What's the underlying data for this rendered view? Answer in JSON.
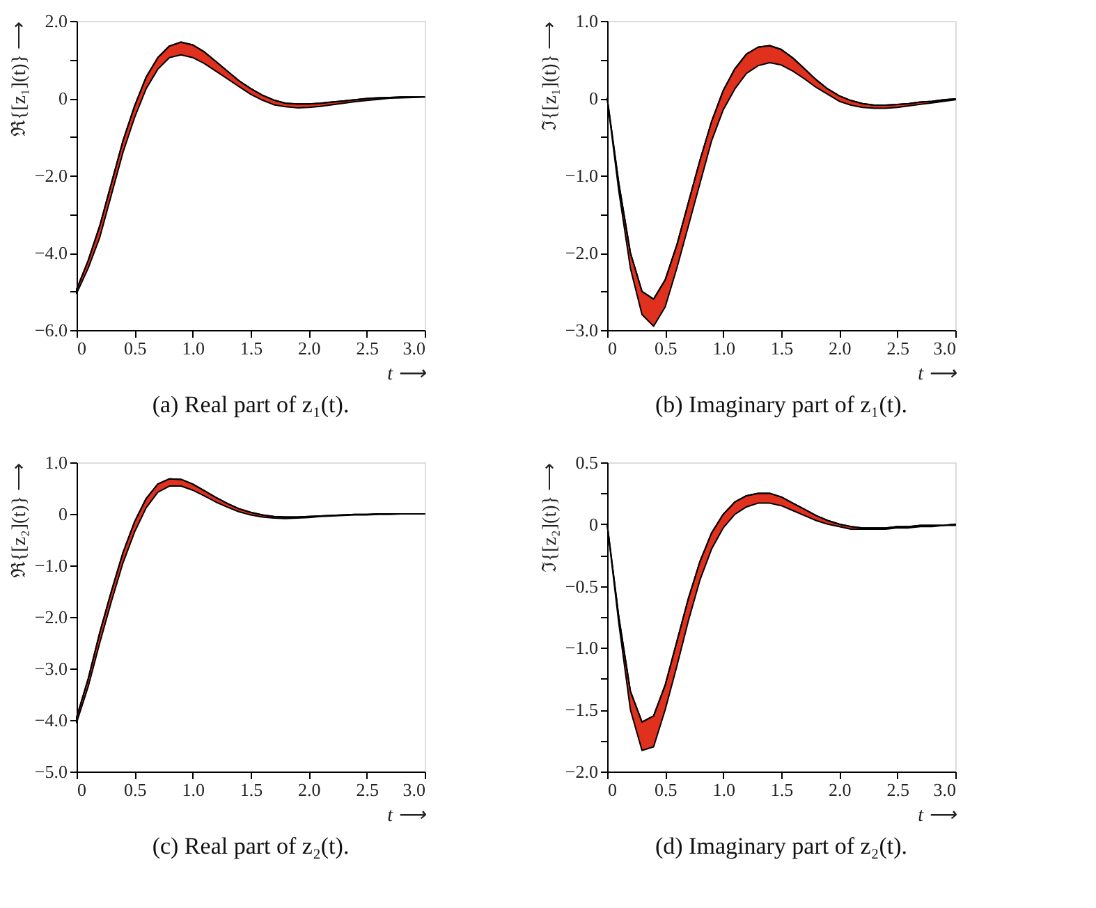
{
  "chart_data": [
    {
      "type": "line",
      "title": "(a) Real part of z₁(t).",
      "xlabel": "t ⟶",
      "ylabel": "ℜ{[z₁](t)} ⟶",
      "x": [
        0,
        0.1,
        0.2,
        0.3,
        0.4,
        0.5,
        0.6,
        0.7,
        0.8,
        0.9,
        1.0,
        1.1,
        1.2,
        1.3,
        1.4,
        1.5,
        1.6,
        1.7,
        1.8,
        1.9,
        2.0,
        2.1,
        2.2,
        2.3,
        2.4,
        2.5,
        2.6,
        2.7,
        2.8,
        2.9,
        3.0
      ],
      "xlim": [
        0,
        3
      ],
      "xticks": [
        0,
        0.5,
        {
          "value": 1,
          "label": "1.0"
        },
        1.5,
        {
          "value": 2,
          "label": "2.0"
        },
        2.5,
        {
          "value": 3,
          "label": "3.0"
        }
      ],
      "ylim": [
        -6,
        2
      ],
      "yticks": [
        {
          "value": -6,
          "label": "−6.0"
        },
        {
          "value": -5,
          "label": null
        },
        {
          "value": -4,
          "label": "−4.0"
        },
        {
          "value": -3,
          "label": null
        },
        {
          "value": -2,
          "label": "−2.0"
        },
        {
          "value": -1,
          "label": null
        },
        0,
        {
          "value": 1,
          "label": null
        },
        {
          "value": 2,
          "label": "2.0"
        }
      ],
      "series": [
        {
          "color": "#000000",
          "values": [
            -4.95,
            -4.2,
            -3.3,
            -2.2,
            -1.1,
            -0.2,
            0.55,
            1.05,
            1.35,
            1.45,
            1.38,
            1.2,
            0.95,
            0.7,
            0.45,
            0.25,
            0.08,
            -0.05,
            -0.13,
            -0.15,
            -0.15,
            -0.13,
            -0.1,
            -0.07,
            -0.04,
            -0.01,
            0.01,
            0.02,
            0.03,
            0.03,
            0.03
          ],
          "lower": [
            -5.05,
            -4.4,
            -3.6,
            -2.5,
            -1.4,
            -0.5,
            0.25,
            0.75,
            1.05,
            1.12,
            1.05,
            0.9,
            0.7,
            0.5,
            0.3,
            0.1,
            -0.05,
            -0.17,
            -0.22,
            -0.25,
            -0.24,
            -0.21,
            -0.17,
            -0.13,
            -0.09,
            -0.06,
            -0.03,
            0,
            0.01,
            0.02,
            0.03
          ],
          "upper": [
            -4.95,
            -4.2,
            -3.3,
            -2.2,
            -1.1,
            -0.2,
            0.55,
            1.05,
            1.35,
            1.45,
            1.38,
            1.2,
            0.95,
            0.7,
            0.45,
            0.25,
            0.08,
            -0.05,
            -0.13,
            -0.15,
            -0.15,
            -0.13,
            -0.1,
            -0.07,
            -0.04,
            -0.01,
            0.01,
            0.02,
            0.03,
            0.03,
            0.03
          ]
        }
      ]
    },
    {
      "type": "line",
      "title": "(b) Imaginary part of z₁(t).",
      "xlabel": "t ⟶",
      "ylabel": "ℑ{[z₁](t)} ⟶",
      "x": [
        0,
        0.1,
        0.2,
        0.3,
        0.4,
        0.5,
        0.6,
        0.7,
        0.8,
        0.9,
        1.0,
        1.1,
        1.2,
        1.3,
        1.4,
        1.5,
        1.6,
        1.7,
        1.8,
        1.9,
        2.0,
        2.1,
        2.2,
        2.3,
        2.4,
        2.5,
        2.6,
        2.7,
        2.8,
        2.9,
        3.0
      ],
      "xlim": [
        0,
        3
      ],
      "xticks": [
        0,
        0.5,
        {
          "value": 1,
          "label": "1.0"
        },
        1.5,
        {
          "value": 2,
          "label": "2.0"
        },
        2.5,
        {
          "value": 3,
          "label": "3.0"
        }
      ],
      "ylim": [
        -3,
        1
      ],
      "yticks": [
        {
          "value": -3,
          "label": "−3.0"
        },
        {
          "value": -2.5,
          "label": null
        },
        {
          "value": -2,
          "label": "−2.0"
        },
        {
          "value": -1.5,
          "label": null
        },
        {
          "value": -1,
          "label": "−1.0"
        },
        {
          "value": -0.5,
          "label": null
        },
        0,
        {
          "value": 0.5,
          "label": null
        },
        {
          "value": 1,
          "label": "1.0"
        }
      ],
      "series": [
        {
          "color": "#000000",
          "values": [
            0,
            -1.1,
            -2.0,
            -2.5,
            -2.6,
            -2.35,
            -1.9,
            -1.35,
            -0.8,
            -0.3,
            0.1,
            0.38,
            0.57,
            0.66,
            0.68,
            0.63,
            0.52,
            0.38,
            0.24,
            0.12,
            0.03,
            -0.03,
            -0.07,
            -0.09,
            -0.09,
            -0.08,
            -0.07,
            -0.05,
            -0.04,
            -0.02,
            -0.01
          ],
          "lower": [
            0,
            -1.2,
            -2.2,
            -2.8,
            -2.95,
            -2.7,
            -2.2,
            -1.65,
            -1.1,
            -0.55,
            -0.15,
            0.12,
            0.32,
            0.42,
            0.46,
            0.43,
            0.35,
            0.25,
            0.14,
            0.05,
            -0.04,
            -0.09,
            -0.12,
            -0.13,
            -0.13,
            -0.12,
            -0.1,
            -0.08,
            -0.06,
            -0.04,
            -0.02
          ],
          "upper": [
            0,
            -1.1,
            -2.0,
            -2.5,
            -2.6,
            -2.35,
            -1.9,
            -1.35,
            -0.8,
            -0.3,
            0.1,
            0.38,
            0.57,
            0.66,
            0.68,
            0.63,
            0.52,
            0.38,
            0.24,
            0.12,
            0.03,
            -0.03,
            -0.07,
            -0.09,
            -0.09,
            -0.08,
            -0.07,
            -0.05,
            -0.04,
            -0.02,
            -0.01
          ]
        }
      ]
    },
    {
      "type": "line",
      "title": "(c) Real part of z₂(t).",
      "xlabel": "t ⟶",
      "ylabel": "ℜ{[z₂](t)} ⟶",
      "x": [
        0,
        0.1,
        0.2,
        0.3,
        0.4,
        0.5,
        0.6,
        0.7,
        0.8,
        0.9,
        1.0,
        1.1,
        1.2,
        1.3,
        1.4,
        1.5,
        1.6,
        1.7,
        1.8,
        1.9,
        2.0,
        2.1,
        2.2,
        2.3,
        2.4,
        2.5,
        2.6,
        2.7,
        2.8,
        2.9,
        3.0
      ],
      "xlim": [
        0,
        3
      ],
      "xticks": [
        0,
        0.5,
        {
          "value": 1,
          "label": "1.0"
        },
        1.5,
        {
          "value": 2,
          "label": "2.0"
        },
        2.5,
        {
          "value": 3,
          "label": "3.0"
        }
      ],
      "ylim": [
        -5,
        1
      ],
      "yticks": [
        {
          "value": -5,
          "label": "−5.0"
        },
        {
          "value": -4,
          "label": "−4.0"
        },
        {
          "value": -3,
          "label": "−3.0"
        },
        {
          "value": -2,
          "label": "−2.0"
        },
        {
          "value": -1,
          "label": "−1.0"
        },
        0,
        {
          "value": 1,
          "label": "1.0"
        }
      ],
      "series": [
        {
          "color": "#000000",
          "values": [
            -3.95,
            -3.2,
            -2.3,
            -1.5,
            -0.75,
            -0.15,
            0.3,
            0.58,
            0.68,
            0.67,
            0.58,
            0.45,
            0.32,
            0.2,
            0.1,
            0.03,
            -0.02,
            -0.05,
            -0.06,
            -0.06,
            -0.05,
            -0.04,
            -0.03,
            -0.02,
            -0.01,
            -0.01,
            0,
            0,
            0,
            0,
            0
          ],
          "lower": [
            -4.05,
            -3.35,
            -2.5,
            -1.7,
            -0.95,
            -0.35,
            0.12,
            0.42,
            0.54,
            0.54,
            0.46,
            0.35,
            0.23,
            0.13,
            0.04,
            -0.02,
            -0.06,
            -0.08,
            -0.09,
            -0.08,
            -0.07,
            -0.05,
            -0.04,
            -0.03,
            -0.02,
            -0.02,
            -0.01,
            -0.01,
            0,
            0,
            0
          ],
          "upper": [
            -3.95,
            -3.2,
            -2.3,
            -1.5,
            -0.75,
            -0.15,
            0.3,
            0.58,
            0.68,
            0.67,
            0.58,
            0.45,
            0.32,
            0.2,
            0.1,
            0.03,
            -0.02,
            -0.05,
            -0.06,
            -0.06,
            -0.05,
            -0.04,
            -0.03,
            -0.02,
            -0.01,
            -0.01,
            0,
            0,
            0,
            0,
            0
          ]
        }
      ]
    },
    {
      "type": "line",
      "title": "(d) Imaginary part of z₂(t).",
      "xlabel": "t ⟶",
      "ylabel": "ℑ{[z₂](t)} ⟶",
      "x": [
        0,
        0.1,
        0.2,
        0.3,
        0.4,
        0.5,
        0.6,
        0.7,
        0.8,
        0.9,
        1.0,
        1.1,
        1.2,
        1.3,
        1.4,
        1.5,
        1.6,
        1.7,
        1.8,
        1.9,
        2.0,
        2.1,
        2.2,
        2.3,
        2.4,
        2.5,
        2.6,
        2.7,
        2.8,
        2.9,
        3.0
      ],
      "xlim": [
        0,
        3
      ],
      "xticks": [
        0,
        0.5,
        {
          "value": 1,
          "label": "1.0"
        },
        1.5,
        {
          "value": 2,
          "label": "2.0"
        },
        2.5,
        {
          "value": 3,
          "label": "3.0"
        }
      ],
      "ylim": [
        -2,
        0.5
      ],
      "yticks": [
        {
          "value": -2,
          "label": "−2.0"
        },
        {
          "value": -1.75,
          "label": null
        },
        {
          "value": -1.5,
          "label": "−1.5"
        },
        {
          "value": -1.25,
          "label": null
        },
        {
          "value": -1,
          "label": "−1.0"
        },
        {
          "value": -0.75,
          "label": null
        },
        {
          "value": -0.5,
          "label": "−0.5"
        },
        {
          "value": -0.25,
          "label": null
        },
        0,
        {
          "value": 0.25,
          "label": null
        },
        0.5
      ],
      "series": [
        {
          "color": "#000000",
          "values": [
            0,
            -0.75,
            -1.35,
            -1.6,
            -1.55,
            -1.3,
            -0.95,
            -0.6,
            -0.3,
            -0.07,
            0.08,
            0.18,
            0.23,
            0.25,
            0.25,
            0.22,
            0.17,
            0.12,
            0.07,
            0.03,
            0,
            -0.02,
            -0.03,
            -0.03,
            -0.03,
            -0.02,
            -0.02,
            -0.01,
            -0.01,
            -0.01,
            0
          ],
          "lower": [
            0,
            -0.8,
            -1.5,
            -1.83,
            -1.8,
            -1.5,
            -1.15,
            -0.78,
            -0.45,
            -0.2,
            -0.03,
            0.08,
            0.14,
            0.17,
            0.17,
            0.15,
            0.11,
            0.07,
            0.03,
            0,
            -0.02,
            -0.04,
            -0.04,
            -0.04,
            -0.04,
            -0.03,
            -0.03,
            -0.02,
            -0.02,
            -0.01,
            -0.01
          ],
          "upper": [
            0,
            -0.75,
            -1.35,
            -1.6,
            -1.55,
            -1.3,
            -0.95,
            -0.6,
            -0.3,
            -0.07,
            0.08,
            0.18,
            0.23,
            0.25,
            0.25,
            0.22,
            0.17,
            0.12,
            0.07,
            0.03,
            0,
            -0.02,
            -0.03,
            -0.03,
            -0.03,
            -0.02,
            -0.02,
            -0.01,
            -0.01,
            -0.01,
            0
          ]
        }
      ]
    }
  ]
}
